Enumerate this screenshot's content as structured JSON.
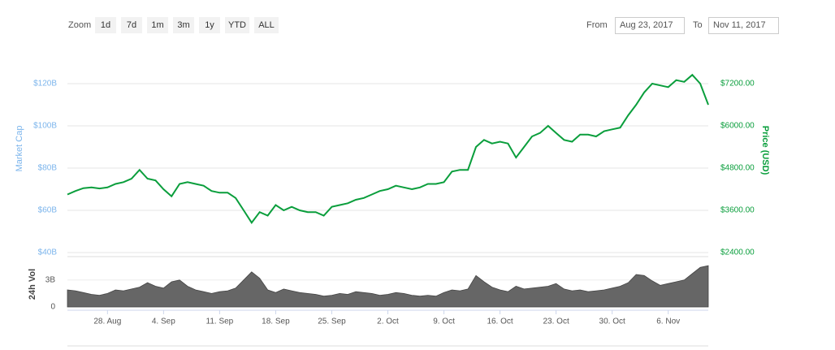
{
  "controls": {
    "zoom": "Zoom",
    "buttons": [
      "1d",
      "7d",
      "1m",
      "3m",
      "1y",
      "YTD",
      "ALL"
    ],
    "from": "From",
    "from_date": "Aug 23, 2017",
    "to": "To",
    "to_date": "Nov 11, 2017"
  },
  "chart_data": [
    {
      "type": "line",
      "y_label": "Market Cap",
      "y2_label": "Price (USD)",
      "grid": true,
      "xlim": [
        "2017-08-23",
        "2017-11-11"
      ],
      "x": [
        "2017-08-23",
        "2017-08-24",
        "2017-08-25",
        "2017-08-26",
        "2017-08-27",
        "2017-08-28",
        "2017-08-29",
        "2017-08-30",
        "2017-08-31",
        "2017-09-01",
        "2017-09-02",
        "2017-09-03",
        "2017-09-04",
        "2017-09-05",
        "2017-09-06",
        "2017-09-07",
        "2017-09-08",
        "2017-09-09",
        "2017-09-10",
        "2017-09-11",
        "2017-09-12",
        "2017-09-13",
        "2017-09-14",
        "2017-09-15",
        "2017-09-16",
        "2017-09-17",
        "2017-09-18",
        "2017-09-19",
        "2017-09-20",
        "2017-09-21",
        "2017-09-22",
        "2017-09-23",
        "2017-09-24",
        "2017-09-25",
        "2017-09-26",
        "2017-09-27",
        "2017-09-28",
        "2017-09-29",
        "2017-09-30",
        "2017-10-01",
        "2017-10-02",
        "2017-10-03",
        "2017-10-04",
        "2017-10-05",
        "2017-10-06",
        "2017-10-07",
        "2017-10-08",
        "2017-10-09",
        "2017-10-10",
        "2017-10-11",
        "2017-10-12",
        "2017-10-13",
        "2017-10-14",
        "2017-10-15",
        "2017-10-16",
        "2017-10-17",
        "2017-10-18",
        "2017-10-19",
        "2017-10-20",
        "2017-10-21",
        "2017-10-22",
        "2017-10-23",
        "2017-10-24",
        "2017-10-25",
        "2017-10-26",
        "2017-10-27",
        "2017-10-28",
        "2017-10-29",
        "2017-10-30",
        "2017-10-31",
        "2017-11-01",
        "2017-11-02",
        "2017-11-03",
        "2017-11-04",
        "2017-11-05",
        "2017-11-06",
        "2017-11-07",
        "2017-11-08",
        "2017-11-09",
        "2017-11-10",
        "2017-11-11"
      ],
      "ylim": [
        40,
        130
      ],
      "yticks": [
        {
          "value": 40,
          "label": "$40B"
        },
        {
          "value": 60,
          "label": "$60B"
        },
        {
          "value": 80,
          "label": "$80B"
        },
        {
          "value": 100,
          "label": "$100B"
        },
        {
          "value": 120,
          "label": "$120B"
        }
      ],
      "y2lim": [
        2400,
        7800
      ],
      "y2ticks": [
        {
          "value": 2400,
          "label": "$2400.00"
        },
        {
          "value": 3600,
          "label": "$3600.00"
        },
        {
          "value": 4800,
          "label": "$4800.00"
        },
        {
          "value": 6000,
          "label": "$6000.00"
        },
        {
          "value": 7200,
          "label": "$7200.00"
        }
      ],
      "series": [
        {
          "color": "#0a9e3c",
          "axis": "y2",
          "values": [
            4050,
            4150,
            4230,
            4250,
            4220,
            4250,
            4350,
            4400,
            4500,
            4750,
            4500,
            4450,
            4200,
            4000,
            4350,
            4400,
            4350,
            4300,
            4150,
            4100,
            4100,
            3950,
            3600,
            3250,
            3550,
            3450,
            3750,
            3600,
            3700,
            3600,
            3550,
            3550,
            3450,
            3700,
            3750,
            3800,
            3900,
            3950,
            4050,
            4150,
            4200,
            4300,
            4250,
            4200,
            4250,
            4350,
            4350,
            4400,
            4700,
            4750,
            4750,
            5400,
            5600,
            5500,
            5550,
            5500,
            5100,
            5400,
            5700,
            5800,
            6000,
            5800,
            5600,
            5550,
            5750,
            5750,
            5700,
            5850,
            5900,
            5950,
            6300,
            6600,
            6950,
            7200,
            7150,
            7100,
            7300,
            7250,
            7450,
            7200,
            6600
          ]
        }
      ]
    },
    {
      "type": "area",
      "y_label": "24h Vol",
      "color": "#666666",
      "xlim": [
        "2017-08-23",
        "2017-11-11"
      ],
      "xticks": [
        {
          "value": "2017-08-28",
          "label": "28. Aug"
        },
        {
          "value": "2017-09-04",
          "label": "4. Sep"
        },
        {
          "value": "2017-09-11",
          "label": "11. Sep"
        },
        {
          "value": "2017-09-18",
          "label": "18. Sep"
        },
        {
          "value": "2017-09-25",
          "label": "25. Sep"
        },
        {
          "value": "2017-10-02",
          "label": "2. Oct"
        },
        {
          "value": "2017-10-09",
          "label": "9. Oct"
        },
        {
          "value": "2017-10-16",
          "label": "16. Oct"
        },
        {
          "value": "2017-10-23",
          "label": "23. Oct"
        },
        {
          "value": "2017-10-30",
          "label": "30. Oct"
        },
        {
          "value": "2017-11-06",
          "label": "6. Nov"
        }
      ],
      "ylim": [
        0,
        5.6
      ],
      "yticks": [
        0,
        {
          "value": 3,
          "label": "3B"
        }
      ],
      "values": [
        1.9,
        1.8,
        1.6,
        1.4,
        1.3,
        1.5,
        1.9,
        1.8,
        2.0,
        2.2,
        2.7,
        2.3,
        2.1,
        2.8,
        3.0,
        2.3,
        1.9,
        1.7,
        1.5,
        1.7,
        1.8,
        2.1,
        3.0,
        3.9,
        3.2,
        1.9,
        1.6,
        2.0,
        1.8,
        1.6,
        1.5,
        1.4,
        1.2,
        1.3,
        1.5,
        1.4,
        1.7,
        1.6,
        1.5,
        1.3,
        1.4,
        1.6,
        1.5,
        1.3,
        1.2,
        1.3,
        1.2,
        1.6,
        1.9,
        1.8,
        2.0,
        3.5,
        2.8,
        2.2,
        1.9,
        1.7,
        2.3,
        2.0,
        2.1,
        2.2,
        2.3,
        2.6,
        2.0,
        1.8,
        1.9,
        1.7,
        1.8,
        1.9,
        2.1,
        2.3,
        2.7,
        3.6,
        3.5,
        2.9,
        2.4,
        2.6,
        2.8,
        3.0,
        3.7,
        4.4,
        4.6
      ]
    }
  ]
}
